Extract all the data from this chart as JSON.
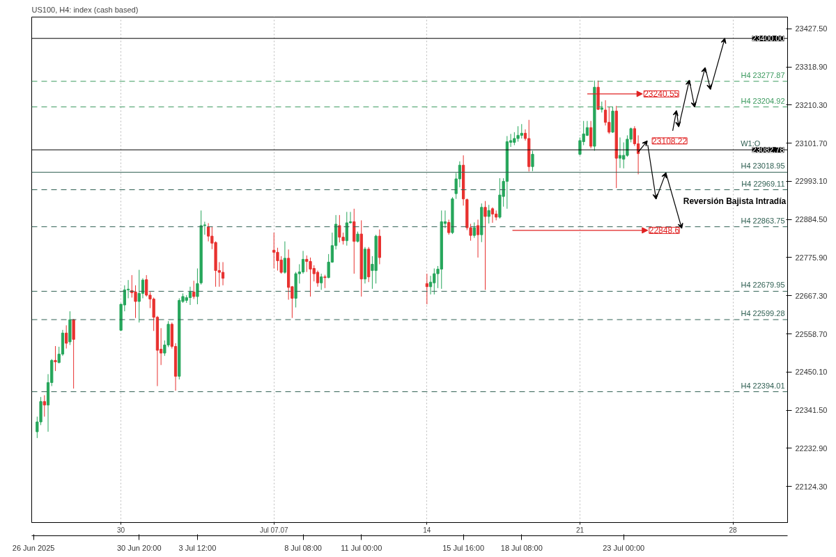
{
  "chart_data": {
    "type": "candlestick",
    "title": "US100, H4: index (cash based)",
    "xlim": [
      "2025-06-25T22:00",
      "2025-07-30T12:00"
    ],
    "ylim": [
      22021.5,
      23460.8
    ],
    "xticks": [
      {
        "value": "2025-06-26T00:00",
        "label": "26 Jun 2025"
      },
      {
        "value": "2025-06-30T20:00",
        "label": "30 Jun 20:00"
      },
      {
        "value": "2025-07-03T12:00",
        "label": "3 Jul 12:00"
      },
      {
        "value": "2025-07-08T08:00",
        "label": "8 Jul 08:00"
      },
      {
        "value": "2025-07-11T00:00",
        "label": "11 Jul 00:00"
      },
      {
        "value": "2025-07-15T16:00",
        "label": "15 Jul 16:00"
      },
      {
        "value": "2025-07-18T08:00",
        "label": "18 Jul 08:00"
      },
      {
        "value": "2025-07-23T00:00",
        "label": "23 Jul 00:00"
      }
    ],
    "x2lim": [
      "2025-06-25T22:00",
      "2025-07-30T12:00"
    ],
    "x2ticks": [
      {
        "value": "2025-06-30",
        "label": "30"
      },
      {
        "value": "2025-07-07",
        "label": "Jul 07.07"
      },
      {
        "value": "2025-07-14",
        "label": "14"
      },
      {
        "value": "2025-07-21",
        "label": "21"
      },
      {
        "value": "2025-07-28",
        "label": "28"
      }
    ],
    "yticks": [
      {
        "value": 22124.3,
        "label": "22124.30"
      },
      {
        "value": 22232.9,
        "label": "22232.90"
      },
      {
        "value": 22341.5,
        "label": "22341.50"
      },
      {
        "value": 22450.1,
        "label": "22450.10"
      },
      {
        "value": 22558.7,
        "label": "22558.70"
      },
      {
        "value": 22667.3,
        "label": "22667.30"
      },
      {
        "value": 22775.9,
        "label": "22775.90"
      },
      {
        "value": 22884.5,
        "label": "22884.50"
      },
      {
        "value": 22993.1,
        "label": "22993.10"
      },
      {
        "value": 23101.7,
        "label": "23101.70"
      },
      {
        "value": 23210.3,
        "label": "23210.30"
      },
      {
        "value": 23318.9,
        "label": "23318.90"
      },
      {
        "value": 23427.5,
        "label": "23427.50"
      }
    ],
    "grid": "x",
    "series": [
      {
        "x": [
          "2025-06-26T04:00",
          "2025-06-26T08:00",
          "2025-06-26T12:00",
          "2025-06-26T16:00",
          "2025-06-26T20:00",
          "2025-06-27T00:00",
          "2025-06-27T04:00",
          "2025-06-27T08:00",
          "2025-06-27T12:00",
          "2025-06-27T16:00",
          "2025-06-27T20:00",
          "2025-06-30T00:00",
          "2025-06-30T04:00",
          "2025-06-30T08:00",
          "2025-06-30T12:00",
          "2025-06-30T16:00",
          "2025-06-30T20:00",
          "2025-07-01T00:00",
          "2025-07-01T04:00",
          "2025-07-01T08:00",
          "2025-07-01T12:00",
          "2025-07-01T16:00",
          "2025-07-01T20:00",
          "2025-07-02T00:00",
          "2025-07-02T04:00",
          "2025-07-02T08:00",
          "2025-07-02T12:00",
          "2025-07-02T16:00",
          "2025-07-02T20:00",
          "2025-07-03T00:00",
          "2025-07-03T04:00",
          "2025-07-03T08:00",
          "2025-07-03T12:00",
          "2025-07-03T16:00",
          "2025-07-03T20:00",
          "2025-07-04T00:00",
          "2025-07-04T04:00",
          "2025-07-04T08:00",
          "2025-07-04T12:00",
          "2025-07-04T16:00",
          "2025-07-07T00:00",
          "2025-07-07T04:00",
          "2025-07-07T08:00",
          "2025-07-07T12:00",
          "2025-07-07T16:00",
          "2025-07-07T20:00",
          "2025-07-08T00:00",
          "2025-07-08T04:00",
          "2025-07-08T08:00",
          "2025-07-08T12:00",
          "2025-07-08T16:00",
          "2025-07-08T20:00",
          "2025-07-09T00:00",
          "2025-07-09T04:00",
          "2025-07-09T08:00",
          "2025-07-09T12:00",
          "2025-07-09T16:00",
          "2025-07-09T20:00",
          "2025-07-10T00:00",
          "2025-07-10T04:00",
          "2025-07-10T08:00",
          "2025-07-10T12:00",
          "2025-07-10T16:00",
          "2025-07-10T20:00",
          "2025-07-11T00:00",
          "2025-07-11T04:00",
          "2025-07-11T08:00",
          "2025-07-11T12:00",
          "2025-07-11T16:00",
          "2025-07-11T20:00",
          "2025-07-14T00:00",
          "2025-07-14T04:00",
          "2025-07-14T08:00",
          "2025-07-14T12:00",
          "2025-07-14T16:00",
          "2025-07-14T20:00",
          "2025-07-15T00:00",
          "2025-07-15T04:00",
          "2025-07-15T08:00",
          "2025-07-15T12:00",
          "2025-07-15T16:00",
          "2025-07-15T20:00",
          "2025-07-16T00:00",
          "2025-07-16T04:00",
          "2025-07-16T08:00",
          "2025-07-16T12:00",
          "2025-07-16T16:00",
          "2025-07-16T20:00",
          "2025-07-17T00:00",
          "2025-07-17T04:00",
          "2025-07-17T08:00",
          "2025-07-17T12:00",
          "2025-07-17T16:00",
          "2025-07-17T20:00",
          "2025-07-18T00:00",
          "2025-07-18T04:00",
          "2025-07-18T08:00",
          "2025-07-18T12:00",
          "2025-07-18T16:00",
          "2025-07-18T20:00",
          "2025-07-21T00:00",
          "2025-07-21T04:00",
          "2025-07-21T08:00",
          "2025-07-21T12:00",
          "2025-07-21T16:00",
          "2025-07-21T20:00",
          "2025-07-22T00:00",
          "2025-07-22T04:00",
          "2025-07-22T08:00",
          "2025-07-22T12:00",
          "2025-07-22T16:00",
          "2025-07-22T20:00",
          "2025-07-23T00:00",
          "2025-07-23T04:00",
          "2025-07-23T08:00",
          "2025-07-23T12:00",
          "2025-07-23T16:00"
        ],
        "ohlc": [
          [
            22280,
            22323,
            22262,
            22308
          ],
          [
            22308,
            22379,
            22299,
            22366
          ],
          [
            22366,
            22384,
            22323,
            22356
          ],
          [
            22356,
            22444,
            22280,
            22420
          ],
          [
            22420,
            22487,
            22410,
            22483
          ],
          [
            22483,
            22524,
            22453,
            22479
          ],
          [
            22477,
            22522,
            22475,
            22501
          ],
          [
            22501,
            22570,
            22496,
            22561
          ],
          [
            22561,
            22583,
            22517,
            22532
          ],
          [
            22536,
            22623,
            22527,
            22599
          ],
          [
            22599,
            22601,
            22403,
            22543
          ],
          [
            22569,
            22645,
            22567,
            22643
          ],
          [
            22641,
            22697,
            22623,
            22684
          ],
          [
            22684,
            22712,
            22660,
            22686
          ],
          [
            22682,
            22726,
            22662,
            22676
          ],
          [
            22678,
            22697,
            22604,
            22651
          ],
          [
            22651,
            22741,
            22591,
            22674
          ],
          [
            22674,
            22717,
            22660,
            22712
          ],
          [
            22713,
            22726,
            22665,
            22669
          ],
          [
            22669,
            22678,
            22632,
            22658
          ],
          [
            22658,
            22662,
            22567,
            22606
          ],
          [
            22606,
            22610,
            22410,
            22512
          ],
          [
            22515,
            22575,
            22470,
            22504
          ],
          [
            22504,
            22540,
            22496,
            22527
          ],
          [
            22527,
            22595,
            22521,
            22586
          ],
          [
            22586,
            22591,
            22517,
            22523
          ],
          [
            22523,
            22532,
            22397,
            22438
          ],
          [
            22438,
            22660,
            22429,
            22654
          ],
          [
            22651,
            22674,
            22647,
            22665
          ],
          [
            22654,
            22669,
            22647,
            22662
          ],
          [
            22662,
            22693,
            22641,
            22678
          ],
          [
            22678,
            22710,
            22658,
            22665
          ],
          [
            22665,
            22745,
            22643,
            22702
          ],
          [
            22704,
            22910,
            22699,
            22867
          ],
          [
            22867,
            22878,
            22841,
            22869
          ],
          [
            22863,
            22874,
            22822,
            22837
          ],
          [
            22837,
            22863,
            22800,
            22817
          ],
          [
            22819,
            22822,
            22693,
            22739
          ],
          [
            22739,
            22763,
            22693,
            22734
          ],
          [
            22734,
            22763,
            22697,
            22717
          ],
          [
            22797,
            22847,
            22745,
            22791
          ],
          [
            22791,
            22804,
            22739,
            22767
          ],
          [
            22769,
            22780,
            22730,
            22734
          ],
          [
            22734,
            22822,
            22730,
            22774
          ],
          [
            22774,
            22799,
            22656,
            22691
          ],
          [
            22693,
            22695,
            22604,
            22660
          ],
          [
            22660,
            22735,
            22634,
            22730
          ],
          [
            22730,
            22757,
            22702,
            22735
          ],
          [
            22735,
            22795,
            22730,
            22771
          ],
          [
            22771,
            22782,
            22735,
            22765
          ],
          [
            22765,
            22776,
            22665,
            22743
          ],
          [
            22745,
            22754,
            22708,
            22730
          ],
          [
            22734,
            22739,
            22693,
            22704
          ],
          [
            22704,
            22730,
            22684,
            22721
          ],
          [
            22721,
            22727,
            22689,
            22719
          ],
          [
            22719,
            22786,
            22717,
            22763
          ],
          [
            22763,
            22847,
            22761,
            22810
          ],
          [
            22810,
            22897,
            22799,
            22871
          ],
          [
            22867,
            22897,
            22819,
            22834
          ],
          [
            22834,
            22847,
            22813,
            22824
          ],
          [
            22824,
            22906,
            22810,
            22875
          ],
          [
            22875,
            22906,
            22873,
            22878
          ],
          [
            22878,
            22915,
            22730,
            22822
          ],
          [
            22822,
            22850,
            22819,
            22843
          ],
          [
            22843,
            22882,
            22665,
            22715
          ],
          [
            22715,
            22806,
            22702,
            22800
          ],
          [
            22800,
            22806,
            22706,
            22721
          ],
          [
            22739,
            22780,
            22687,
            22757
          ],
          [
            22739,
            22841,
            22702,
            22837
          ],
          [
            22837,
            22856,
            22757,
            22776
          ],
          [
            22702,
            22730,
            22643,
            22693
          ],
          [
            22693,
            22724,
            22671,
            22706
          ],
          [
            22704,
            22745,
            22671,
            22730
          ],
          [
            22730,
            22752,
            22689,
            22743
          ],
          [
            22743,
            22910,
            22687,
            22878
          ],
          [
            22873,
            22910,
            22860,
            22878
          ],
          [
            22876,
            22884,
            22841,
            22847
          ],
          [
            22847,
            22948,
            22843,
            22943
          ],
          [
            22958,
            23017,
            22943,
            23000
          ],
          [
            23000,
            23050,
            22976,
            23039
          ],
          [
            23039,
            23067,
            22924,
            22943
          ],
          [
            22941,
            22944,
            22854,
            22861
          ],
          [
            22861,
            22872,
            22824,
            22839
          ],
          [
            22839,
            22876,
            22832,
            22861
          ],
          [
            22867,
            22884,
            22776,
            22841
          ],
          [
            22841,
            22930,
            22820,
            22919
          ],
          [
            22919,
            22937,
            22684,
            22893
          ],
          [
            22893,
            22926,
            22873,
            22910
          ],
          [
            22915,
            22919,
            22875,
            22900
          ],
          [
            22900,
            22910,
            22882,
            22891
          ],
          [
            22891,
            23002,
            22887,
            22954
          ],
          [
            22950,
            23002,
            22921,
            22993
          ],
          [
            22993,
            23122,
            22915,
            23106
          ],
          [
            23104,
            23128,
            23091,
            23109
          ],
          [
            23104,
            23133,
            23096,
            23115
          ],
          [
            23115,
            23150,
            23106,
            23124
          ],
          [
            23124,
            23156,
            23115,
            23130
          ],
          [
            23130,
            23141,
            23109,
            23115
          ],
          [
            23115,
            23168,
            23021,
            23035
          ],
          [
            23035,
            23080,
            23022,
            23070
          ],
          [
            23070,
            23118,
            23067,
            23109
          ],
          [
            23106,
            23165,
            23096,
            23128
          ],
          [
            23124,
            23165,
            23122,
            23146
          ],
          [
            23146,
            23165,
            23087,
            23093
          ],
          [
            23093,
            23280,
            23080,
            23261
          ],
          [
            23261,
            23280,
            23196,
            23198
          ],
          [
            23198,
            23220,
            23189,
            23202
          ],
          [
            23196,
            23224,
            23152,
            23161
          ],
          [
            23161,
            23206,
            23128,
            23133
          ],
          [
            23133,
            23206,
            23131,
            23193
          ],
          [
            23193,
            23208,
            22974,
            23059
          ],
          [
            23059,
            23118,
            23031,
            23067
          ],
          [
            23056,
            23104,
            23030,
            23067
          ],
          [
            23067,
            23124,
            23063,
            23113
          ],
          [
            23113,
            23146,
            23104,
            23143
          ],
          [
            23143,
            23150,
            23094,
            23100
          ],
          [
            23100,
            23124,
            23013,
            23072
          ]
        ],
        "colors": [
          "#26a65b",
          "#26a65b",
          "#e8312f",
          "#26a65b",
          "#26a65b",
          "#e8312f",
          "#26a65b",
          "#26a65b",
          "#e8312f",
          "#26a65b",
          "#e8312f",
          "#26a65b",
          "#26a65b",
          "#26a65b",
          "#e8312f",
          "#e8312f",
          "#26a65b",
          "#26a65b",
          "#e8312f",
          "#e8312f",
          "#e8312f",
          "#e8312f",
          "#e8312f",
          "#26a65b",
          "#26a65b",
          "#e8312f",
          "#e8312f",
          "#26a65b",
          "#26a65b",
          "#26a65b",
          "#26a65b",
          "#e8312f",
          "#26a65b",
          "#26a65b",
          "#26a65b",
          "#e8312f",
          "#e8312f",
          "#e8312f",
          "#e8312f",
          "#e8312f",
          "#e8312f",
          "#e8312f",
          "#e8312f",
          "#26a65b",
          "#e8312f",
          "#e8312f",
          "#26a65b",
          "#26a65b",
          "#26a65b",
          "#e8312f",
          "#e8312f",
          "#e8312f",
          "#e8312f",
          "#26a65b",
          "#e8312f",
          "#26a65b",
          "#26a65b",
          "#26a65b",
          "#e8312f",
          "#e8312f",
          "#26a65b",
          "#26a65b",
          "#e8312f",
          "#26a65b",
          "#e8312f",
          "#26a65b",
          "#e8312f",
          "#26a65b",
          "#26a65b",
          "#e8312f",
          "#e8312f",
          "#26a65b",
          "#26a65b",
          "#26a65b",
          "#26a65b",
          "#26a65b",
          "#e8312f",
          "#26a65b",
          "#26a65b",
          "#26a65b",
          "#e8312f",
          "#e8312f",
          "#e8312f",
          "#26a65b",
          "#e8312f",
          "#26a65b",
          "#e8312f",
          "#26a65b",
          "#e8312f",
          "#e8312f",
          "#26a65b",
          "#26a65b",
          "#26a65b",
          "#26a65b",
          "#26a65b",
          "#26a65b",
          "#26a65b",
          "#e8312f",
          "#e8312f",
          "#26a65b",
          "#26a65b",
          "#26a65b",
          "#26a65b",
          "#e8312f",
          "#26a65b",
          "#e8312f",
          "#26a65b",
          "#e8312f",
          "#e8312f",
          "#26a65b",
          "#e8312f",
          "#26a65b",
          "#26a65b",
          "#26a65b",
          "#26a65b",
          "#e8312f",
          "#e8312f"
        ]
      }
    ],
    "ref_lines": [
      {
        "axis": "y",
        "value": 23400.0,
        "label": "23400.00",
        "color": "#000000",
        "line_style": "solid"
      },
      {
        "axis": "y",
        "value": 23082.78,
        "label": "23082.78",
        "color": "#000000",
        "line_style": "solid"
      },
      {
        "axis": "y",
        "value": 23277.87,
        "label": "H4 23277.87",
        "color": "#3c9a5f",
        "line_style": "dashed"
      },
      {
        "axis": "y",
        "value": 23204.92,
        "label": "H4 23204.92",
        "color": "#3c9a5f",
        "line_style": "dashed"
      },
      {
        "axis": "y",
        "value": 23018.95,
        "label": "H4 23018.95",
        "color": "#2f5f52",
        "line_style": "solid"
      },
      {
        "axis": "y",
        "value": 22969.11,
        "label": "H4 22969.11",
        "color": "#2f5f52",
        "line_style": "dashed"
      },
      {
        "axis": "y",
        "value": 22863.75,
        "label": "H4 22863.75",
        "color": "#2f5f52",
        "line_style": "dashed"
      },
      {
        "axis": "y",
        "value": 22679.95,
        "label": "H4 22679.95",
        "color": "#2f5f52",
        "line_style": "dashed"
      },
      {
        "axis": "y",
        "value": 22599.28,
        "label": "H4 22599.28",
        "color": "#2f5f52",
        "line_style": "dashed"
      },
      {
        "axis": "y",
        "value": 22394.01,
        "label": "H4 22394.01",
        "color": "#2f5f52",
        "line_style": "dashed"
      }
    ],
    "annotations": [
      "23240.55",
      {
        "text": "23108.22",
        "x": "2025-07-23T16:00",
        "y": 23108.22
      },
      "22848.6",
      "Reversión Bajista Intradía",
      {
        "text": "W1:O",
        "x": "2025-07-29T06:00",
        "y": 23082.78
      }
    ]
  }
}
